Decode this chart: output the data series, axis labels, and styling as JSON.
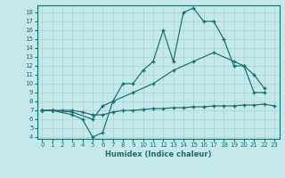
{
  "xlabel": "Humidex (Indice chaleur)",
  "bg_color": "#c5e8e8",
  "line_color": "#1a6e6e",
  "grid_color": "#a8d4d4",
  "xlim": [
    -0.5,
    23.5
  ],
  "ylim": [
    3.8,
    18.8
  ],
  "yticks": [
    4,
    5,
    6,
    7,
    8,
    9,
    10,
    11,
    12,
    13,
    14,
    15,
    16,
    17,
    18
  ],
  "xticks": [
    0,
    1,
    2,
    3,
    4,
    5,
    6,
    7,
    8,
    9,
    10,
    11,
    12,
    13,
    14,
    15,
    16,
    17,
    18,
    19,
    20,
    21,
    22,
    23
  ],
  "line1": {
    "x": [
      0,
      1,
      3,
      4,
      5,
      6,
      7,
      8,
      9,
      10,
      11,
      12,
      13,
      14,
      15,
      16,
      17,
      18,
      19,
      20,
      21,
      22
    ],
    "y": [
      7,
      7,
      6.5,
      6.0,
      4.0,
      4.5,
      8.0,
      10.0,
      10.0,
      11.5,
      12.5,
      16.0,
      12.5,
      18.0,
      18.5,
      17.0,
      17.0,
      15.0,
      12.0,
      12.0,
      9.0,
      9.0
    ]
  },
  "line2": {
    "x": [
      0,
      1,
      3,
      5,
      6,
      7,
      9,
      11,
      13,
      15,
      17,
      19,
      20,
      21,
      22
    ],
    "y": [
      7,
      7,
      6.8,
      6.0,
      7.5,
      8.0,
      9.0,
      10.0,
      11.5,
      12.5,
      13.5,
      12.5,
      12.0,
      11.0,
      9.5
    ]
  },
  "line3": {
    "x": [
      0,
      1,
      2,
      3,
      4,
      5,
      6,
      7,
      8,
      9,
      10,
      11,
      12,
      13,
      14,
      15,
      16,
      17,
      18,
      19,
      20,
      21,
      22,
      23
    ],
    "y": [
      7,
      7,
      7,
      7,
      6.8,
      6.5,
      6.5,
      6.8,
      7.0,
      7.0,
      7.1,
      7.2,
      7.2,
      7.3,
      7.3,
      7.4,
      7.4,
      7.5,
      7.5,
      7.5,
      7.6,
      7.6,
      7.7,
      7.5
    ]
  }
}
